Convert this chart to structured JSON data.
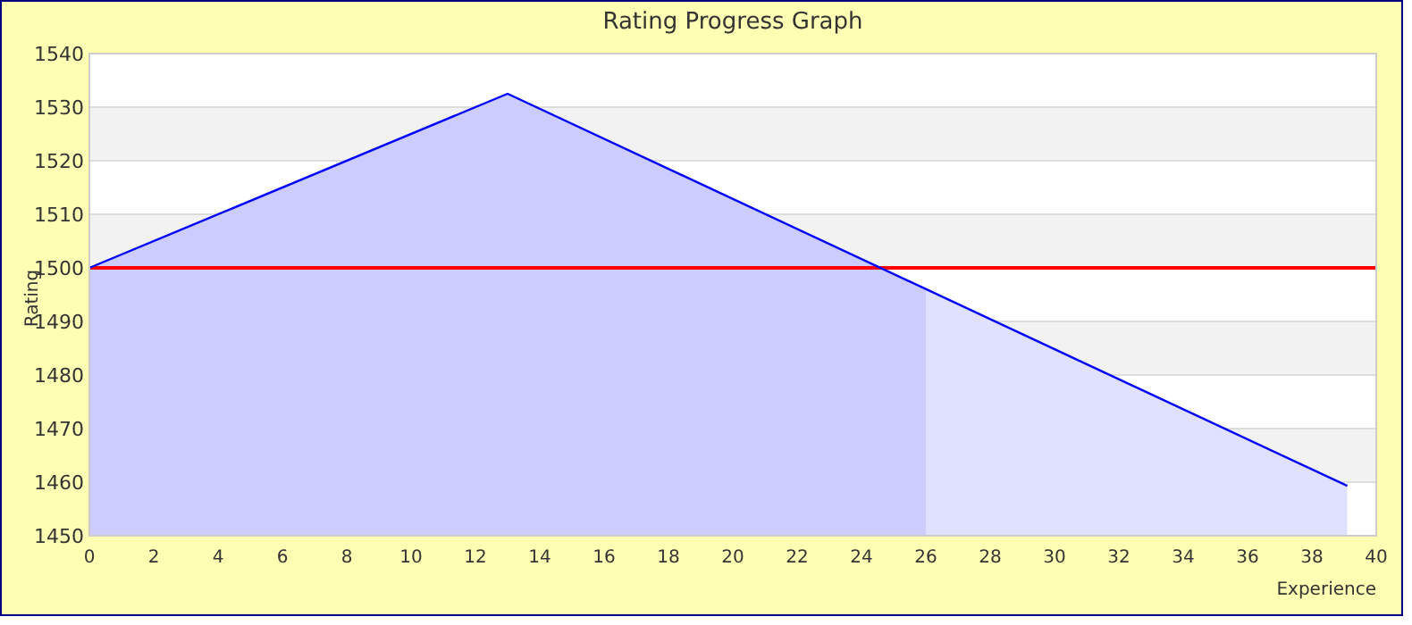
{
  "chart_data": {
    "type": "area",
    "title": "Rating Progress Graph",
    "xlabel": "Experience",
    "ylabel": "Rating",
    "series": [
      {
        "color": "#ccccff",
        "x": [
          0,
          13,
          26
        ],
        "values": [
          1500,
          1532.5,
          1495.8
        ]
      },
      {
        "color": "#e0e0ff",
        "x": [
          26,
          39.1
        ],
        "values": [
          1495.8,
          1459.3
        ]
      },
      {
        "type": "line",
        "color": "#0000ff",
        "x": [
          0,
          13,
          39.1
        ],
        "values": [
          1500,
          1532.5,
          1459.3
        ]
      }
    ],
    "xlim": [
      0,
      40
    ],
    "xticks": [
      0,
      2,
      4,
      6,
      8,
      10,
      12,
      14,
      16,
      18,
      20,
      22,
      24,
      26,
      28,
      30,
      32,
      34,
      36,
      38,
      40
    ],
    "ylim": [
      1450,
      1540
    ],
    "yticks": [
      1450,
      1460,
      1470,
      1480,
      1490,
      1500,
      1510,
      1520,
      1530,
      1540
    ],
    "grid": "y",
    "marker": "none",
    "ref_lines": [
      {
        "axis": "y",
        "value": 1500,
        "color": "#ff0000"
      }
    ]
  }
}
